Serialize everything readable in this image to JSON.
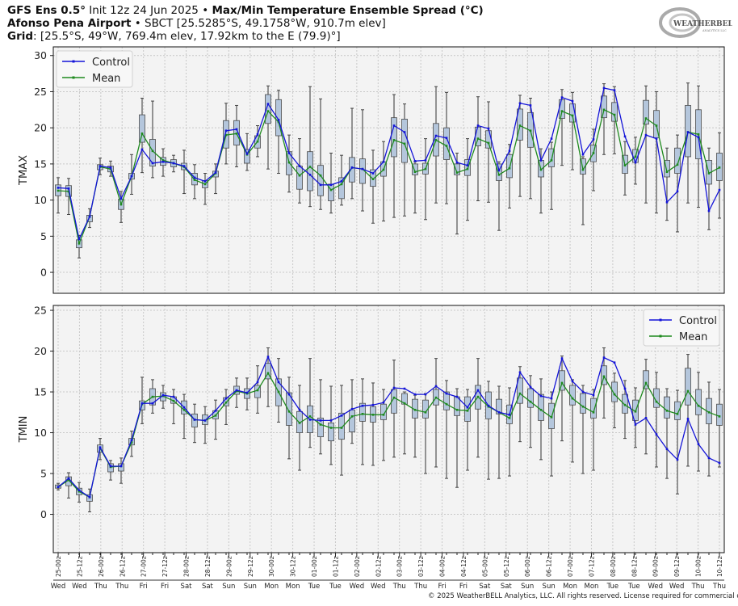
{
  "header": {
    "line1_model": "GFS Ens 0.5°",
    "line1_init": " Init 12z 24 Jun 2025",
    "line1_sep": " • ",
    "line1_title": "Max/Min Temperature Ensemble Spread (°C)",
    "line2_station": "Afonso Pena Airport",
    "line2_sep": " • ",
    "line2_info": "SBCT [25.5285°S, 49.1758°W, 910.7m elev]",
    "line3_label": "Grid",
    "line3_info": ": [25.5°S, 49°W, 769.4m elev, 17.92km to the E (79.9)°]"
  },
  "logo": {
    "text": "WeatherBELL",
    "sub": "Analytics LLC"
  },
  "copyright": "© 2025 WeatherBELL Analytics, LLC. All rights reserved. License required for commercial distribution.",
  "colors": {
    "control": "#1414d8",
    "mean": "#1f8a1f",
    "box_fill": "#b4c6dc",
    "box_edge": "#4a4a4a",
    "whisker": "#7a7a7a",
    "axes_bg": "#f3f3f3"
  },
  "x_ticks": {
    "labels": [
      "25-00z",
      "25-12z",
      "26-00z",
      "26-12z",
      "27-00z",
      "27-12z",
      "28-00z",
      "28-12z",
      "29-00z",
      "29-12z",
      "30-00z",
      "30-12z",
      "01-00z",
      "01-12z",
      "02-00z",
      "02-12z",
      "03-00z",
      "03-12z",
      "04-00z",
      "04-12z",
      "05-00z",
      "05-12z",
      "06-00z",
      "06-12z",
      "07-00z",
      "07-12z",
      "08-00z",
      "08-12z",
      "09-00z",
      "09-12z",
      "10-00z",
      "10-12z"
    ],
    "days": [
      "Wed",
      "Wed",
      "Thu",
      "Thu",
      "Fri",
      "Fri",
      "Sat",
      "Sat",
      "Sun",
      "Sun",
      "Mon",
      "Mon",
      "Tue",
      "Tue",
      "Wed",
      "Wed",
      "Thu",
      "Thu",
      "Fri",
      "Fri",
      "Sat",
      "Sat",
      "Sun",
      "Sun",
      "Mon",
      "Mon",
      "Tue",
      "Tue",
      "Wed",
      "Wed",
      "Thu",
      "Thu"
    ]
  },
  "chart_data": [
    {
      "type": "boxplot+line",
      "ylabel": "TMAX",
      "ylim": [
        -2.9,
        31.2
      ],
      "yticks": [
        0,
        5,
        10,
        15,
        20,
        25,
        30
      ],
      "grid": true,
      "legend_position": "top-left",
      "series": [
        {
          "name": "Control",
          "values": [
            11.7,
            11.6,
            4.6,
            7.7,
            14.7,
            14.5,
            10.2,
            13.3,
            17.0,
            15.1,
            15.3,
            15.1,
            14.7,
            13.1,
            12.6,
            13.8,
            19.6,
            19.8,
            16.4,
            19.1,
            23.3,
            21.1,
            16.5,
            14.7,
            13.5,
            12.1,
            12.1,
            12.6,
            14.5,
            14.3,
            13.7,
            15.3,
            20.3,
            19.4,
            15.4,
            15.5,
            18.9,
            18.6,
            15.2,
            14.8,
            20.3,
            19.9,
            14.1,
            16.8,
            23.4,
            23.1,
            15.5,
            18.5,
            24.2,
            23.7,
            16.3,
            18.4,
            25.5,
            25.2,
            18.8,
            15.2,
            19.0,
            18.5,
            9.7,
            11.2,
            19.4,
            18.7,
            8.5,
            11.4
          ]
        },
        {
          "name": "Mean",
          "values": [
            11.3,
            11.2,
            4.0,
            7.7,
            14.6,
            14.3,
            9.4,
            13.3,
            19.2,
            16.8,
            15.5,
            15.1,
            14.6,
            12.8,
            12.2,
            13.7,
            19.0,
            19.2,
            16.3,
            18.1,
            22.3,
            20.8,
            15.2,
            13.4,
            14.6,
            13.4,
            11.4,
            12.2,
            14.5,
            14.3,
            12.9,
            14.2,
            18.3,
            17.8,
            13.9,
            14.3,
            18.3,
            17.5,
            13.8,
            14.3,
            18.5,
            17.9,
            13.5,
            14.4,
            20.3,
            19.6,
            14.2,
            15.5,
            22.3,
            21.7,
            14.2,
            16.5,
            22.5,
            21.8,
            14.8,
            16.0,
            21.3,
            20.3,
            13.9,
            14.9,
            19.4,
            19.1,
            13.7,
            14.5
          ]
        }
      ],
      "box_q1": [
        10.6,
        10.5,
        3.4,
        7.0,
        14.2,
        13.9,
        8.7,
        12.9,
        18.0,
        14.7,
        14.8,
        14.6,
        14.2,
        12.1,
        11.7,
        13.2,
        17.2,
        17.6,
        15.1,
        17.2,
        20.6,
        18.9,
        13.5,
        11.5,
        11.3,
        10.6,
        9.9,
        10.2,
        12.5,
        12.3,
        11.9,
        13.3,
        16.0,
        15.2,
        13.5,
        13.6,
        16.1,
        15.6,
        13.5,
        13.4,
        17.5,
        17.2,
        12.7,
        13.1,
        18.3,
        17.3,
        13.2,
        14.6,
        21.3,
        20.8,
        13.6,
        15.3,
        21.4,
        20.9,
        13.7,
        15.2,
        20.5,
        18.6,
        13.2,
        13.7,
        16.0,
        15.7,
        12.2,
        12.7
      ],
      "box_q3": [
        12.1,
        12.0,
        4.5,
        7.9,
        14.9,
        14.7,
        10.1,
        13.7,
        21.8,
        18.4,
        15.9,
        15.6,
        15.1,
        13.7,
        12.7,
        14.0,
        21.0,
        21.0,
        17.0,
        18.9,
        24.6,
        23.9,
        16.7,
        14.7,
        16.7,
        14.8,
        12.2,
        13.1,
        15.9,
        15.7,
        14.2,
        15.3,
        21.4,
        21.2,
        15.0,
        15.1,
        20.6,
        20.0,
        15.0,
        15.6,
        20.1,
        19.6,
        15.0,
        16.3,
        22.6,
        22.1,
        15.5,
        17.1,
        23.9,
        23.3,
        15.7,
        17.6,
        24.4,
        23.5,
        16.2,
        17.0,
        23.8,
        22.4,
        15.5,
        17.2,
        23.1,
        22.5,
        15.5,
        16.5
      ],
      "whisker_min": [
        8.2,
        8.0,
        2.0,
        6.2,
        13.5,
        13.3,
        6.9,
        10.8,
        13.8,
        13.1,
        13.3,
        13.9,
        10.9,
        10.2,
        9.4,
        10.9,
        15.0,
        14.6,
        14.1,
        16.0,
        14.3,
        13.7,
        11.1,
        9.6,
        9.1,
        8.7,
        8.2,
        9.3,
        10.2,
        8.5,
        6.8,
        7.1,
        7.6,
        7.8,
        8.2,
        7.3,
        9.6,
        9.5,
        5.3,
        7.2,
        9.9,
        9.7,
        5.8,
        8.9,
        10.5,
        10.2,
        8.2,
        8.7,
        14.8,
        14.2,
        6.6,
        11.3,
        16.3,
        16.4,
        10.7,
        12.2,
        9.6,
        8.2,
        7.2,
        5.6,
        9.6,
        9.0,
        5.9,
        7.5
      ],
      "whisker_max": [
        13.1,
        13.0,
        5.1,
        8.8,
        15.8,
        15.4,
        11.2,
        16.3,
        24.1,
        23.7,
        17.1,
        16.2,
        16.9,
        14.9,
        13.7,
        15.0,
        23.4,
        23.1,
        19.2,
        20.3,
        25.8,
        25.2,
        19.0,
        18.5,
        25.7,
        24.0,
        16.5,
        16.2,
        22.7,
        22.5,
        16.9,
        18.1,
        24.6,
        23.3,
        15.3,
        18.5,
        25.7,
        24.9,
        16.5,
        18.5,
        24.3,
        23.6,
        15.3,
        17.7,
        24.5,
        24.1,
        17.1,
        18.0,
        25.3,
        24.9,
        16.0,
        19.8,
        26.1,
        25.7,
        18.1,
        18.7,
        25.8,
        25.0,
        17.2,
        19.0,
        26.2,
        25.8,
        17.2,
        19.3
      ]
    },
    {
      "type": "boxplot+line",
      "ylabel": "TMIN",
      "ylim": [
        -4.7,
        25.6
      ],
      "yticks": [
        0,
        5,
        10,
        15,
        20,
        25
      ],
      "grid": true,
      "legend_position": "top-right",
      "series": [
        {
          "name": "Control",
          "values": [
            3.35,
            4.4,
            2.95,
            2.1,
            8.2,
            5.9,
            5.9,
            9.1,
            13.6,
            13.6,
            14.6,
            14.4,
            13.1,
            11.6,
            11.5,
            12.7,
            14.2,
            15.2,
            14.9,
            16.2,
            19.3,
            16.2,
            14.7,
            12.8,
            11.6,
            11.5,
            11.5,
            12.1,
            12.9,
            13.3,
            13.4,
            13.7,
            15.5,
            15.4,
            14.7,
            14.7,
            15.7,
            14.8,
            14.4,
            13.1,
            15.2,
            13.3,
            12.5,
            12.2,
            17.4,
            15.6,
            14.5,
            14.2,
            19.1,
            16.3,
            15.0,
            14.6,
            19.2,
            18.6,
            15.4,
            11.0,
            11.8,
            9.8,
            8.0,
            6.7,
            11.7,
            8.6,
            6.9,
            6.3
          ]
        },
        {
          "name": "Mean",
          "values": [
            3.35,
            4.2,
            2.8,
            2.1,
            8.1,
            5.8,
            5.9,
            8.8,
            13.5,
            14.4,
            14.5,
            13.9,
            12.8,
            11.6,
            11.5,
            12.1,
            13.7,
            15.1,
            14.8,
            15.2,
            17.3,
            15.0,
            12.6,
            11.2,
            12.0,
            11.0,
            10.6,
            10.6,
            12.0,
            12.3,
            12.2,
            12.2,
            14.3,
            13.6,
            12.8,
            12.5,
            14.3,
            13.5,
            12.8,
            12.7,
            14.4,
            13.2,
            12.5,
            11.8,
            14.8,
            13.8,
            12.8,
            11.9,
            16.1,
            14.2,
            13.2,
            12.5,
            16.9,
            14.7,
            13.4,
            12.6,
            16.1,
            13.8,
            12.7,
            12.3,
            15.1,
            13.3,
            12.5,
            12.0
          ]
        }
      ],
      "box_q1": [
        3.2,
        3.5,
        2.4,
        1.6,
        7.6,
        5.2,
        5.3,
        8.5,
        12.8,
        13.4,
        13.9,
        13.6,
        12.3,
        10.7,
        11.0,
        11.7,
        13.3,
        14.7,
        14.2,
        14.3,
        16.6,
        13.3,
        10.9,
        10.0,
        10.0,
        9.5,
        9.0,
        9.2,
        10.1,
        11.4,
        11.3,
        11.6,
        12.4,
        13.5,
        11.8,
        11.8,
        13.4,
        12.8,
        12.1,
        11.4,
        12.9,
        11.7,
        12.3,
        11.1,
        13.6,
        13.1,
        11.5,
        10.5,
        15.2,
        13.4,
        12.4,
        11.8,
        15.9,
        13.8,
        12.4,
        11.5,
        15.4,
        13.1,
        11.8,
        11.6,
        13.4,
        12.2,
        11.1,
        10.9
      ],
      "box_q3": [
        3.6,
        4.6,
        3.2,
        2.4,
        8.5,
        6.2,
        6.2,
        9.3,
        13.9,
        15.4,
        14.9,
        14.4,
        13.9,
        12.3,
        12.2,
        12.7,
        14.3,
        15.7,
        15.4,
        15.8,
        18.5,
        16.6,
        14.9,
        12.6,
        13.3,
        11.8,
        11.2,
        12.4,
        12.8,
        13.6,
        13.2,
        13.5,
        15.3,
        14.8,
        14.1,
        14.0,
        15.3,
        15.0,
        14.4,
        14.4,
        15.8,
        15.0,
        14.1,
        13.4,
        16.7,
        15.4,
        14.7,
        13.6,
        17.6,
        15.8,
        14.8,
        14.2,
        18.2,
        16.2,
        14.7,
        14.0,
        17.6,
        15.4,
        14.4,
        13.8,
        17.9,
        15.3,
        14.2,
        13.5
      ],
      "whisker_min": [
        3.0,
        2.0,
        1.5,
        0.3,
        6.7,
        4.2,
        3.8,
        7.1,
        11.1,
        12.4,
        13.0,
        11.1,
        9.3,
        8.8,
        8.7,
        9.2,
        11.0,
        13.1,
        12.8,
        12.4,
        13.2,
        11.3,
        6.8,
        5.4,
        8.2,
        7.4,
        6.1,
        4.8,
        8.7,
        6.1,
        6.0,
        6.6,
        7.0,
        7.4,
        7.0,
        5.0,
        5.8,
        4.4,
        3.3,
        5.4,
        7.0,
        4.3,
        4.4,
        4.7,
        8.9,
        8.2,
        6.7,
        4.7,
        9.0,
        6.4,
        5.0,
        5.4,
        11.8,
        10.6,
        9.3,
        8.2,
        7.4,
        5.8,
        4.4,
        2.5,
        5.9,
        5.3,
        4.7,
        5.8
      ],
      "whisker_max": [
        3.8,
        5.1,
        3.9,
        3.1,
        9.3,
        6.6,
        6.9,
        10.2,
        16.8,
        16.5,
        15.8,
        15.3,
        14.7,
        13.5,
        13.2,
        14.0,
        15.3,
        16.7,
        16.7,
        18.2,
        20.4,
        19.1,
        16.8,
        15.8,
        19.1,
        16.5,
        15.7,
        15.8,
        16.5,
        16.6,
        16.1,
        15.3,
        18.9,
        15.0,
        14.6,
        14.8,
        19.1,
        16.4,
        15.4,
        15.3,
        19.1,
        16.3,
        15.7,
        15.5,
        18.1,
        17.0,
        16.6,
        15.0,
        19.4,
        16.5,
        15.8,
        15.3,
        20.4,
        17.3,
        16.4,
        15.5,
        19.0,
        17.4,
        15.4,
        15.2,
        19.6,
        17.4,
        16.2,
        15.3
      ]
    }
  ]
}
